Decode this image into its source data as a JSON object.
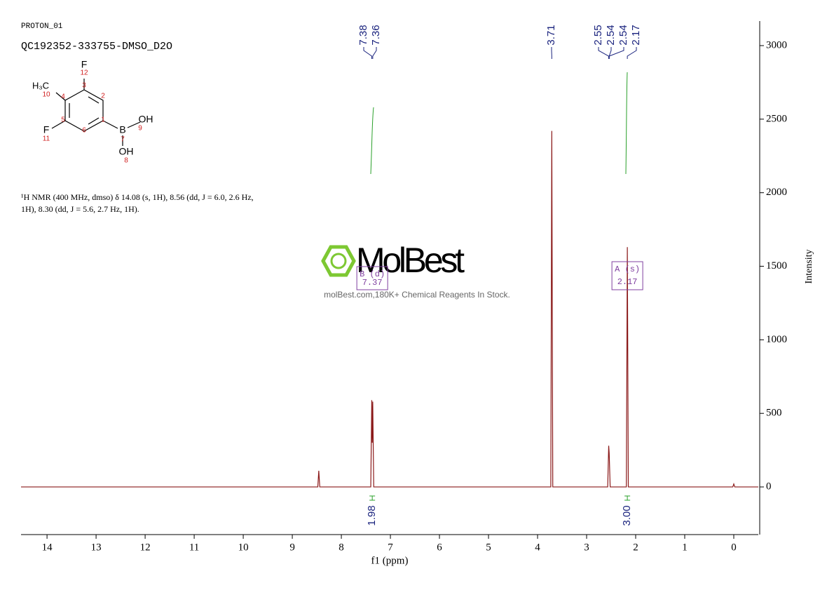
{
  "chart_data": {
    "type": "line",
    "title": "PROTON_01",
    "subtitle": "QC192352-333755-DMSO_D2O",
    "description": [
      "¹H NMR (400 MHz, dmso) δ 14.08 (s, 1H), 8.56 (dd, J = 6.0, 2.6 Hz,",
      "1H), 8.30 (dd, J = 5.6, 2.7 Hz, 1H)."
    ],
    "structure_labels": [
      "F",
      "12",
      "3",
      "2",
      "H₃C",
      "10",
      "4",
      "1",
      "F",
      "11",
      "5",
      "6",
      "B",
      "7",
      "OH",
      "9",
      "OH",
      "8"
    ],
    "watermark": "MolBest",
    "watermark_note": "molBest.com,180K+ Chemical Reagents In Stock.",
    "x_label": "f1 (ppm)",
    "y_label": "Intensity",
    "xlim": [
      14.53,
      -0.5
    ],
    "xticks": [
      14,
      13,
      12,
      11,
      10,
      9,
      8,
      7,
      6,
      5,
      4,
      3,
      2,
      1,
      0
    ],
    "ylim": [
      -324,
      3167
    ],
    "yticks": [
      0,
      500,
      1000,
      1500,
      2000,
      2500,
      3000
    ],
    "series": [
      {
        "name": "spectrum",
        "color": "#8b1a1a",
        "x": [
          14.53,
          8.48,
          8.46,
          8.44,
          7.4,
          7.38,
          7.37,
          7.36,
          7.34,
          3.73,
          3.71,
          3.69,
          2.57,
          2.55,
          2.54,
          2.52,
          2.19,
          2.17,
          2.15,
          0.02,
          0.0,
          -0.02,
          -0.5
        ],
        "values": [
          0,
          0,
          110,
          0,
          0,
          590,
          300,
          580,
          0,
          0,
          2420,
          0,
          0,
          280,
          230,
          0,
          0,
          1630,
          0,
          0,
          20,
          0,
          0
        ]
      }
    ],
    "peak_labels": [
      7.38,
      7.36,
      3.71,
      2.55,
      2.54,
      2.54,
      2.17
    ],
    "integrals": [
      {
        "x": 7.37,
        "value": 1.98
      },
      {
        "x": 2.17,
        "value": {
          "value": 3,
          "label": "3.00"
        }
      }
    ],
    "multiplets": [
      {
        "name": "B (d)",
        "shift": 7.37
      },
      {
        "name": "A (s)",
        "shift": 2.17
      }
    ]
  }
}
